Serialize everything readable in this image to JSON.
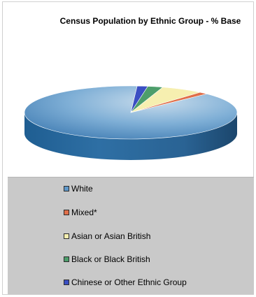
{
  "chart_data": {
    "type": "pie",
    "style": "3d",
    "title": "Census Population by Ethnic Group - % Base",
    "categories": [
      "White",
      "Mixed*",
      "Asian or Asian British",
      "Black or Black British",
      "Chinese or Other Ethnic Group"
    ],
    "values": [
      88.3,
      1.4,
      6.4,
      2.3,
      1.6
    ],
    "colors": [
      "#5e97c9",
      "#e06f4a",
      "#f6efb0",
      "#4d9e6b",
      "#3a4fc3"
    ],
    "legend_position": "bottom"
  }
}
